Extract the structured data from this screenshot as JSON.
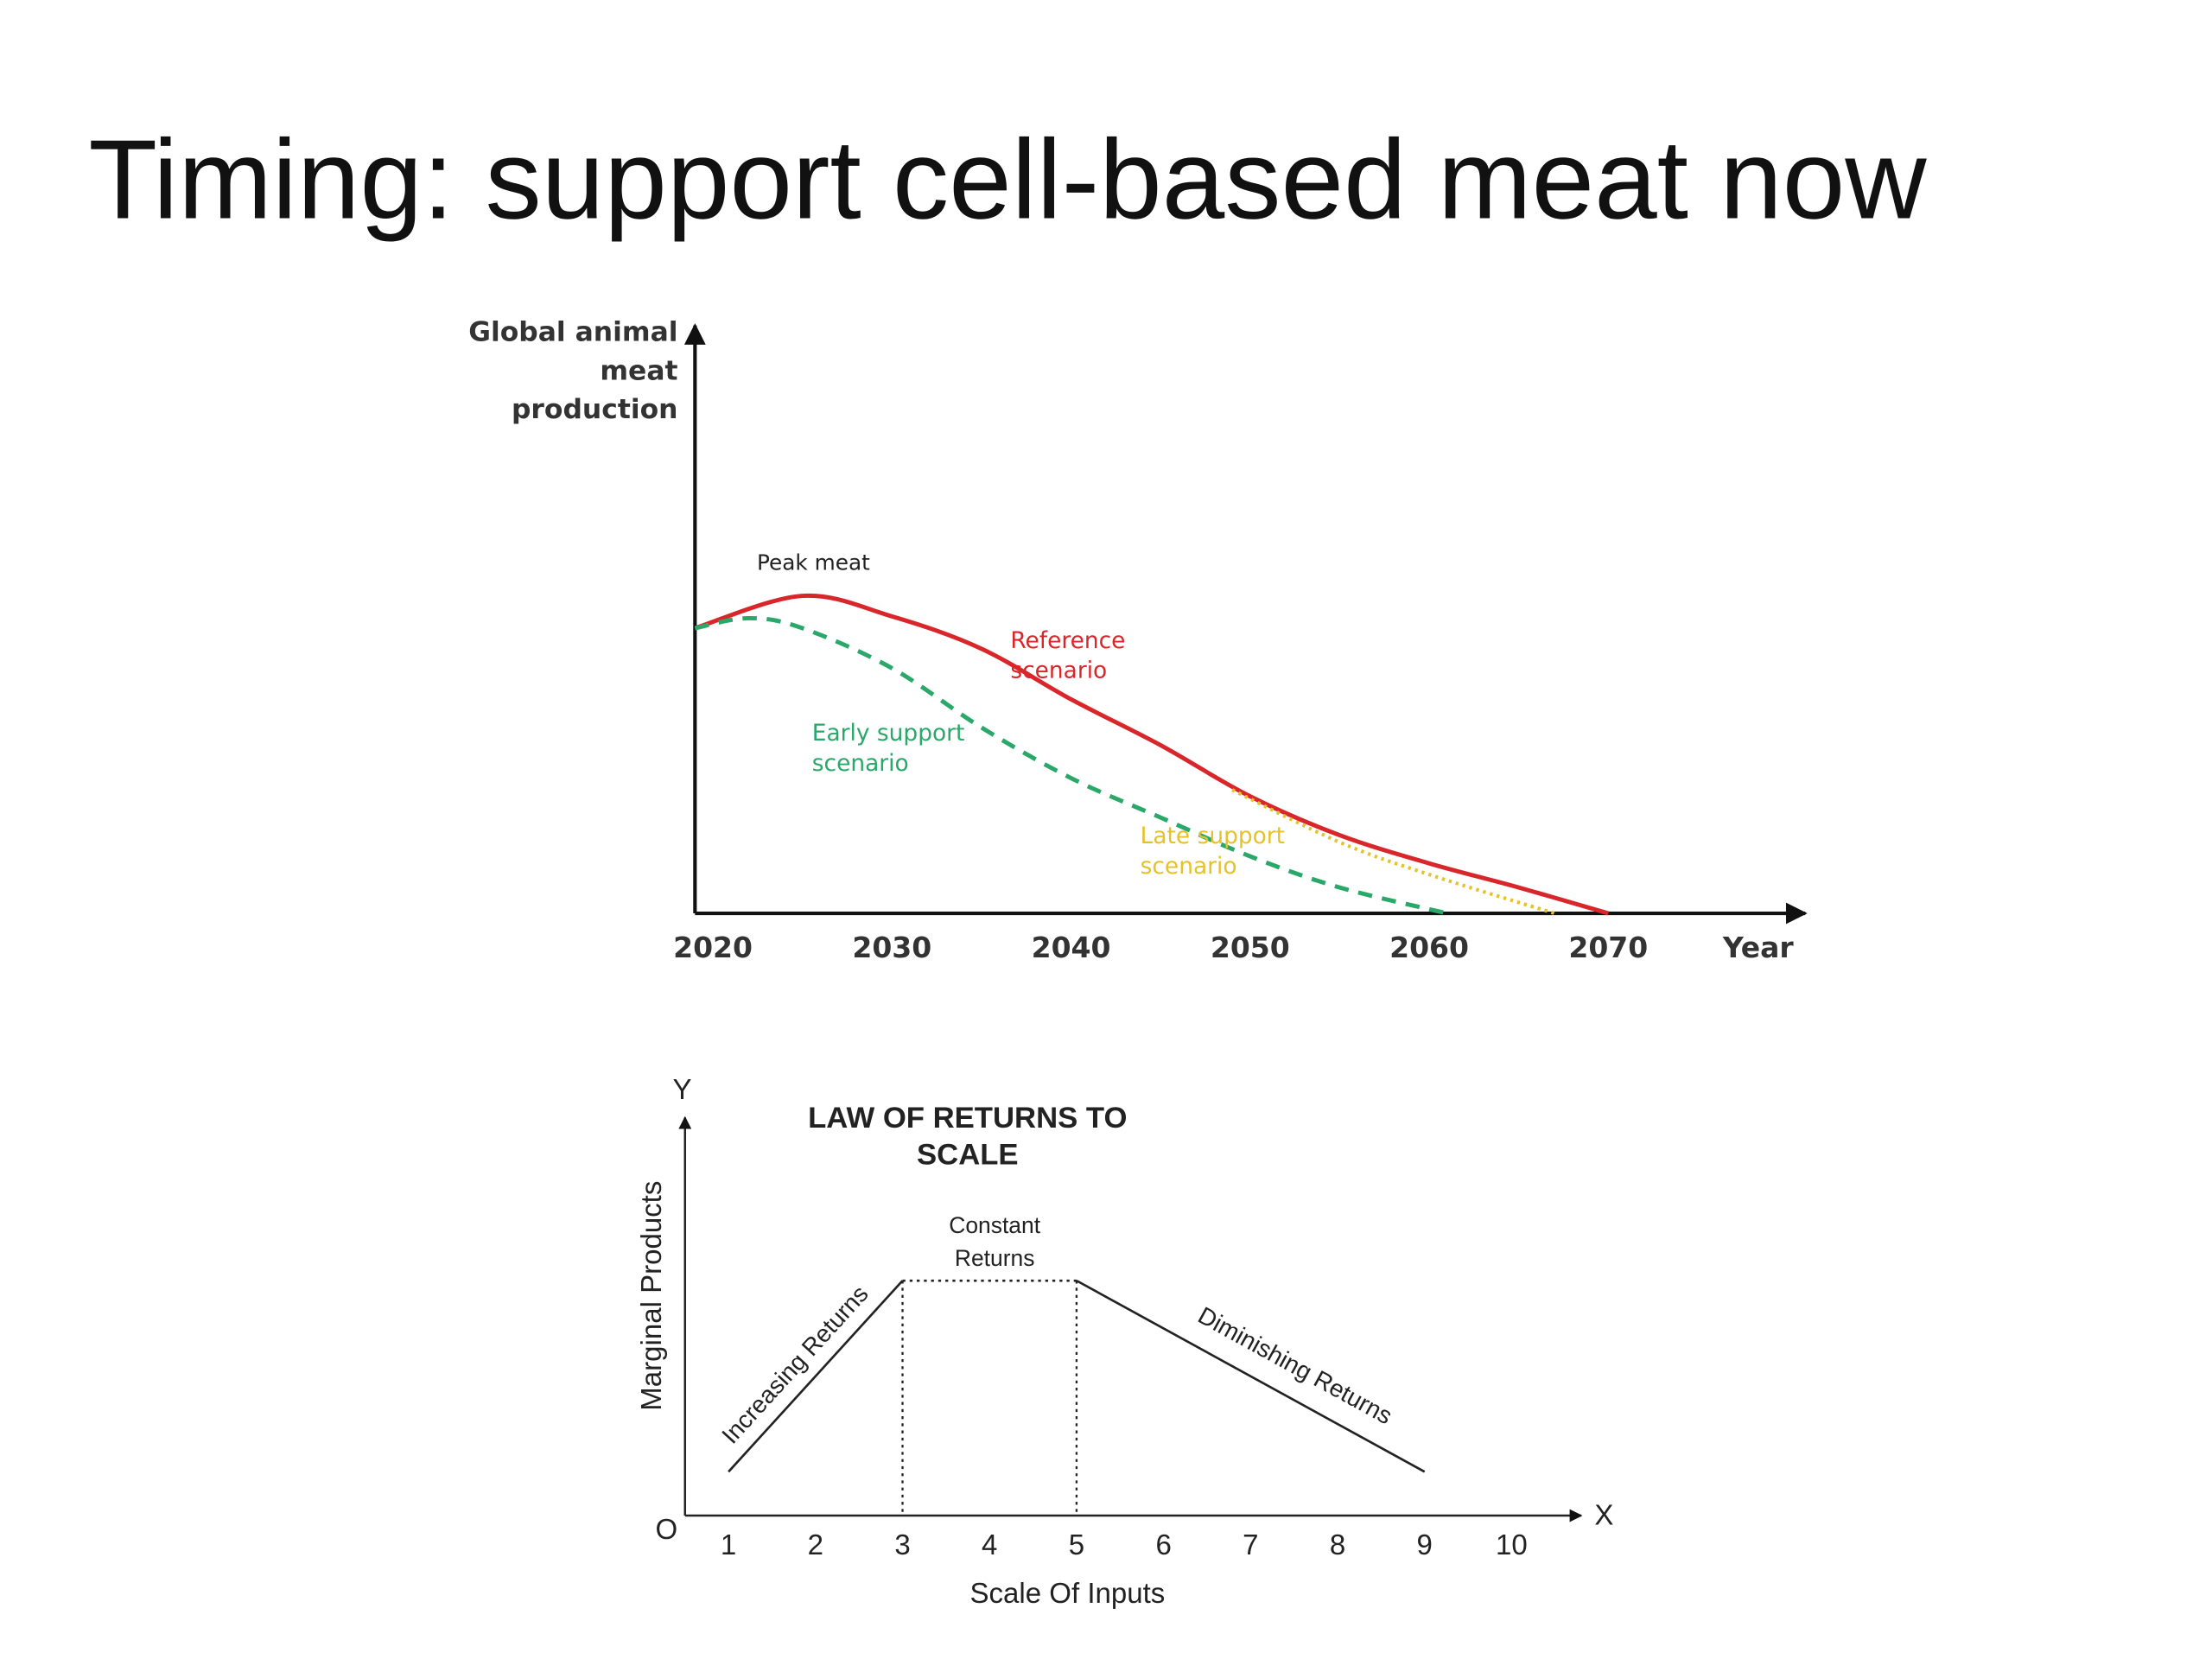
{
  "title": "Timing: support cell-based meat now",
  "chart_data": [
    {
      "type": "line",
      "ylabel": "Global animal meat production",
      "xlabel": "Year",
      "xlim": [
        2019,
        2081
      ],
      "ylim": [
        0,
        100
      ],
      "xticks": [
        2020,
        2030,
        2040,
        2050,
        2060,
        2070
      ],
      "annotations": [
        "Peak meat"
      ],
      "series": [
        {
          "name": "Reference scenario",
          "color": "#d9262a",
          "line_style": "solid",
          "x": [
            2019,
            2025,
            2030,
            2035,
            2040,
            2045,
            2050,
            2055,
            2060,
            2065,
            2070
          ],
          "values": [
            48.5,
            54,
            50.5,
            45,
            36.4,
            28.6,
            19.9,
            13.3,
            8.5,
            4.4,
            0
          ]
        },
        {
          "name": "Early support scenario",
          "color": "#2aa86a",
          "line_style": "dashed",
          "x": [
            2019,
            2022,
            2025,
            2030,
            2035,
            2040,
            2045,
            2050,
            2055,
            2061
          ],
          "values": [
            48.5,
            50.2,
            48.5,
            41.7,
            31.6,
            23,
            16.3,
            9.7,
            4.4,
            0
          ]
        },
        {
          "name": "Late support scenario",
          "color": "#e6c229",
          "line_style": "dotted",
          "x": [
            2049,
            2055,
            2060,
            2067
          ],
          "values": [
            21,
            12.1,
            6.6,
            0
          ]
        }
      ]
    },
    {
      "type": "line",
      "title": "LAW OF RETURNS TO SCALE",
      "xlabel": "Scale Of Inputs",
      "ylabel": "Marginal Products",
      "x_axis_symbol": "X",
      "y_axis_symbol": "Y",
      "origin_label": "O",
      "xlim": [
        0.5,
        10.8
      ],
      "ylim": [
        0,
        10
      ],
      "xticks": [
        1,
        2,
        3,
        4,
        5,
        6,
        7,
        8,
        9,
        10
      ],
      "annotations": [
        "Increasing Returns",
        "Constant Returns",
        "Diminishing Returns"
      ],
      "series": [
        {
          "color": "#222222",
          "segment_styles": [
            "solid",
            "dotted",
            "solid"
          ],
          "drop_lines": true,
          "x": [
            1,
            3,
            5,
            9
          ],
          "values": [
            1.1,
            5.9,
            5.9,
            1.1
          ]
        }
      ]
    }
  ]
}
